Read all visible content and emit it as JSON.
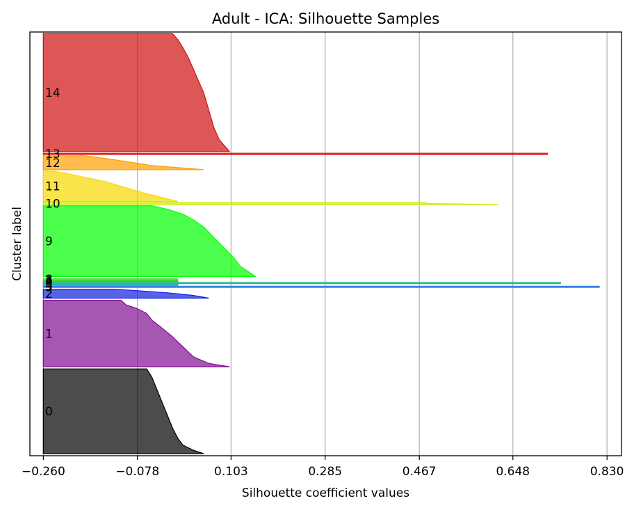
{
  "chart_data": {
    "type": "area",
    "title": "Adult - ICA: Silhouette Samples",
    "xlabel": "Silhouette coefficient values",
    "ylabel": "Cluster label",
    "xlim": [
      -0.286,
      0.858
    ],
    "ylim": [
      0,
      1
    ],
    "xticks": [
      -0.26,
      -0.078,
      0.103,
      0.285,
      0.467,
      0.648,
      0.83
    ],
    "xtick_labels": [
      "−0.260",
      "−0.078",
      "0.103",
      "0.285",
      "0.467",
      "0.648",
      "0.830"
    ],
    "grid": "vertical",
    "baseline": -0.26,
    "clusters": [
      {
        "label": "0",
        "color": "#000000",
        "y_range": [
          0.005,
          0.205
        ],
        "profile": [
          [
            0.05,
            0.0
          ],
          [
            0.03,
            0.04
          ],
          [
            0.01,
            0.1
          ],
          [
            0.0,
            0.18
          ],
          [
            -0.01,
            0.3
          ],
          [
            -0.02,
            0.45
          ],
          [
            -0.03,
            0.6
          ],
          [
            -0.04,
            0.75
          ],
          [
            -0.05,
            0.9
          ],
          [
            -0.06,
            1.0
          ]
        ]
      },
      {
        "label": "1",
        "color": "#7f0f90",
        "y_range": [
          0.21,
          0.367
        ],
        "profile": [
          [
            0.1,
            0.0
          ],
          [
            0.06,
            0.05
          ],
          [
            0.03,
            0.15
          ],
          [
            0.01,
            0.3
          ],
          [
            -0.01,
            0.45
          ],
          [
            -0.03,
            0.58
          ],
          [
            -0.05,
            0.7
          ],
          [
            -0.06,
            0.8
          ],
          [
            -0.08,
            0.88
          ],
          [
            -0.1,
            0.93
          ],
          [
            -0.11,
            1.0
          ]
        ]
      },
      {
        "label": "2",
        "color": "#1020e0",
        "y_range": [
          0.372,
          0.393
        ],
        "profile": [
          [
            0.06,
            0.0
          ],
          [
            0.03,
            0.3
          ],
          [
            -0.02,
            0.6
          ],
          [
            -0.07,
            0.8
          ],
          [
            -0.12,
            1.0
          ]
        ]
      },
      {
        "label": "3",
        "color": "#2f7ee6",
        "y_range": [
          0.397,
          0.4
        ],
        "profile": [
          [
            0.815,
            0.0
          ],
          [
            0.815,
            1.0
          ]
        ]
      },
      {
        "label": "4",
        "color": "#16a8a8",
        "y_range": [
          0.402,
          0.405
        ],
        "profile": [
          [
            0.0,
            0.0
          ],
          [
            0.0,
            1.0
          ]
        ]
      },
      {
        "label": "5",
        "color": "#22b888",
        "y_range": [
          0.406,
          0.409
        ],
        "profile": [
          [
            0.74,
            0.0
          ],
          [
            0.74,
            1.0
          ]
        ]
      },
      {
        "label": "6",
        "color": "#30c060",
        "y_range": [
          0.41,
          0.412
        ],
        "profile": [
          [
            0.0,
            0.0
          ],
          [
            0.0,
            1.0
          ]
        ]
      },
      {
        "label": "7",
        "color": "#40d040",
        "y_range": [
          0.413,
          0.415
        ],
        "profile": [
          [
            0.0,
            0.0
          ],
          [
            0.0,
            1.0
          ]
        ]
      },
      {
        "label": "8",
        "color": "#50e050",
        "y_range": [
          0.416,
          0.418
        ],
        "profile": [
          [
            0.0,
            0.0
          ],
          [
            0.0,
            1.0
          ]
        ]
      },
      {
        "label": "9",
        "color": "#00ff00",
        "y_range": [
          0.423,
          0.59
        ],
        "profile": [
          [
            0.15,
            0.0
          ],
          [
            0.14,
            0.05
          ],
          [
            0.12,
            0.15
          ],
          [
            0.11,
            0.25
          ],
          [
            0.09,
            0.4
          ],
          [
            0.07,
            0.55
          ],
          [
            0.05,
            0.7
          ],
          [
            0.03,
            0.8
          ],
          [
            0.01,
            0.88
          ],
          [
            -0.02,
            0.95
          ],
          [
            -0.05,
            1.0
          ]
        ]
      },
      {
        "label": "10",
        "color": "#c0f000",
        "y_range": [
          0.593,
          0.597
        ],
        "profile": [
          [
            0.62,
            0.0
          ],
          [
            0.48,
            0.5
          ],
          [
            0.48,
            1.0
          ]
        ]
      },
      {
        "label": "11",
        "color": "#f8d800",
        "y_range": [
          0.6,
          0.672
        ],
        "profile": [
          [
            0.0,
            0.0
          ],
          [
            -0.07,
            0.3
          ],
          [
            -0.14,
            0.65
          ],
          [
            -0.21,
            0.9
          ],
          [
            -0.24,
            1.0
          ]
        ]
      },
      {
        "label": "12",
        "color": "#ffa000",
        "y_range": [
          0.675,
          0.708
        ],
        "profile": [
          [
            0.05,
            0.0
          ],
          [
            -0.05,
            0.3
          ],
          [
            -0.12,
            0.7
          ],
          [
            -0.18,
            1.0
          ]
        ]
      },
      {
        "label": "13",
        "color": "#e01010",
        "y_range": [
          0.711,
          0.714
        ],
        "profile": [
          [
            0.715,
            0.0
          ],
          [
            0.715,
            1.0
          ]
        ]
      },
      {
        "label": "14",
        "color": "#d01010",
        "y_range": [
          0.718,
          0.996
        ],
        "profile": [
          [
            0.1,
            0.0
          ],
          [
            0.09,
            0.05
          ],
          [
            0.08,
            0.1
          ],
          [
            0.07,
            0.2
          ],
          [
            0.06,
            0.35
          ],
          [
            0.05,
            0.5
          ],
          [
            0.04,
            0.6
          ],
          [
            0.03,
            0.7
          ],
          [
            0.02,
            0.8
          ],
          [
            0.01,
            0.88
          ],
          [
            0.0,
            0.95
          ],
          [
            -0.01,
            1.0
          ]
        ]
      }
    ]
  }
}
